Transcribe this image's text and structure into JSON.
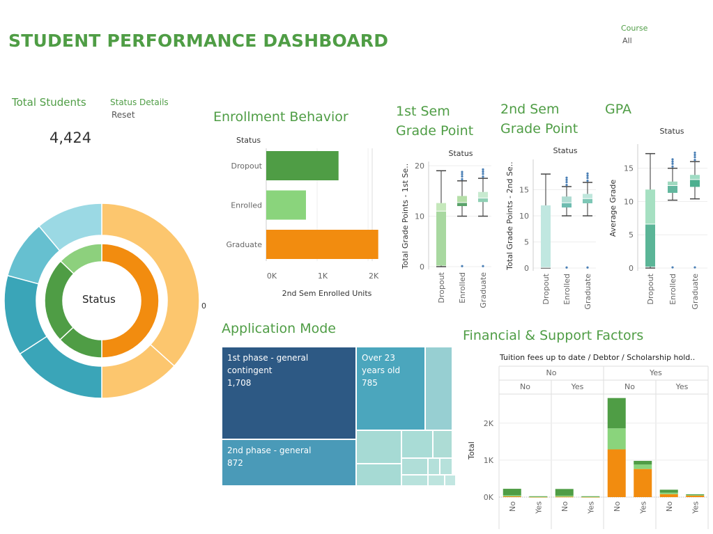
{
  "header": {
    "title": "STUDENT PERFORMANCE DASHBOARD",
    "filter_label": "Course",
    "filter_value": "All"
  },
  "kpi": {
    "label": "Total Students",
    "value": "4,424",
    "status_details": "Status Details",
    "reset": "Reset"
  },
  "donut": {
    "center_label": "Status",
    "side_label": "0",
    "colors": {
      "graduate": "#f28c0f",
      "enrolled": "#8dd07d",
      "dropout": "#4f9d45",
      "outer_light_orange": "#fcc66e",
      "outer_teal_dark": "#3aa5b8",
      "outer_teal_mid": "#66c0d0",
      "outer_teal_light": "#9bd9e4"
    }
  },
  "enrollment": {
    "title": "Enrollment Behavior",
    "legend_title": "Status",
    "x_title": "2nd Sem Enrolled Units",
    "chart_data": {
      "type": "bar",
      "categories": [
        "Dropout",
        "Enrolled",
        "Graduate"
      ],
      "values": [
        1420,
        780,
        2200
      ],
      "ticks": [
        "0K",
        "1K",
        "2K"
      ],
      "xlim": [
        0,
        2300
      ],
      "colors": [
        "#4f9d45",
        "#8ad47c",
        "#f28c0f"
      ]
    }
  },
  "sem1": {
    "title_line1": "1st Sem",
    "title_line2": "Grade Point",
    "header": "Status",
    "y_title": "Total Grade Points - 1st Se..",
    "chart_data": {
      "type": "box",
      "categories": [
        "Dropout",
        "Enrolled",
        "Graduate"
      ],
      "ylim": [
        0,
        20
      ],
      "ticks": [
        0,
        10,
        20
      ],
      "boxes": [
        {
          "min": 0,
          "q1": 0.2,
          "median": 11,
          "q3": 12.6,
          "max": 19
        },
        {
          "min": 10,
          "q1": 12,
          "median": 12.7,
          "q3": 14,
          "max": 17
        },
        {
          "min": 10,
          "q1": 12.8,
          "median": 13.6,
          "q3": 14.8,
          "max": 17.5
        }
      ]
    }
  },
  "sem2": {
    "title_line1": "2nd Sem",
    "title_line2": "Grade Point",
    "header": "Status",
    "y_title": "Total Grade Points - 2nd Se..",
    "chart_data": {
      "type": "box",
      "categories": [
        "Dropout",
        "Enrolled",
        "Graduate"
      ],
      "ylim": [
        0,
        20
      ],
      "ticks": [
        0,
        5,
        10,
        15
      ],
      "boxes": [
        {
          "min": 0,
          "q1": 0.1,
          "median": 0.1,
          "q3": 12,
          "max": 18
        },
        {
          "min": 10,
          "q1": 11.6,
          "median": 12.5,
          "q3": 13.7,
          "max": 15.6
        },
        {
          "min": 10,
          "q1": 12.4,
          "median": 13.3,
          "q3": 14.2,
          "max": 16.4
        }
      ]
    }
  },
  "gpa": {
    "title": "GPA",
    "header": "Status",
    "y_title": "Average Grade",
    "chart_data": {
      "type": "box",
      "categories": [
        "Dropout",
        "Enrolled",
        "Graduate"
      ],
      "ylim": [
        0,
        18
      ],
      "ticks": [
        0,
        5,
        10,
        15
      ],
      "boxes": [
        {
          "min": 0,
          "q1": 0.2,
          "median": 6.6,
          "q3": 11.8,
          "max": 17.2
        },
        {
          "min": 10.2,
          "q1": 11.3,
          "median": 12.4,
          "q3": 13,
          "max": 15
        },
        {
          "min": 10.4,
          "q1": 12.2,
          "median": 13.3,
          "q3": 14,
          "max": 16
        }
      ]
    }
  },
  "application": {
    "title": "Application Mode",
    "cells": [
      {
        "label": "1st phase - general contingent",
        "value": "1,708"
      },
      {
        "label": "Over 23 years old",
        "value": "785"
      },
      {
        "label": "2nd phase - general",
        "value": "872"
      }
    ]
  },
  "financial": {
    "title": "Financial & Support Factors",
    "header": "Tuition fees up to date  /  Debtor  /  Scholarship hold..",
    "level1": [
      "No",
      "Yes"
    ],
    "level2": [
      "No",
      "Yes",
      "No",
      "Yes"
    ],
    "y_title": "Total",
    "y_ticks": [
      "0K",
      "1K",
      "2K"
    ],
    "x_labels": [
      "No",
      "Yes",
      "No",
      "Yes",
      "No",
      "Yes",
      "No",
      "Yes"
    ],
    "chart_data": {
      "type": "bar",
      "stacked": true,
      "categories": [
        "No/No/No",
        "No/No/Yes",
        "No/Yes/No",
        "No/Yes/Yes",
        "Yes/No/No",
        "Yes/No/Yes",
        "Yes/Yes/No",
        "Yes/Yes/Yes"
      ],
      "series": [
        {
          "name": "Graduate",
          "values": [
            20,
            5,
            10,
            5,
            1290,
            760,
            80,
            45
          ]
        },
        {
          "name": "Enrolled",
          "values": [
            30,
            8,
            30,
            8,
            570,
            120,
            40,
            10
          ]
        },
        {
          "name": "Dropout",
          "values": [
            175,
            10,
            180,
            10,
            820,
            100,
            80,
            20
          ]
        }
      ],
      "ylim": [
        0,
        2900
      ],
      "colors": [
        "#f28c0f",
        "#8ad47c",
        "#4f9d45"
      ]
    }
  }
}
